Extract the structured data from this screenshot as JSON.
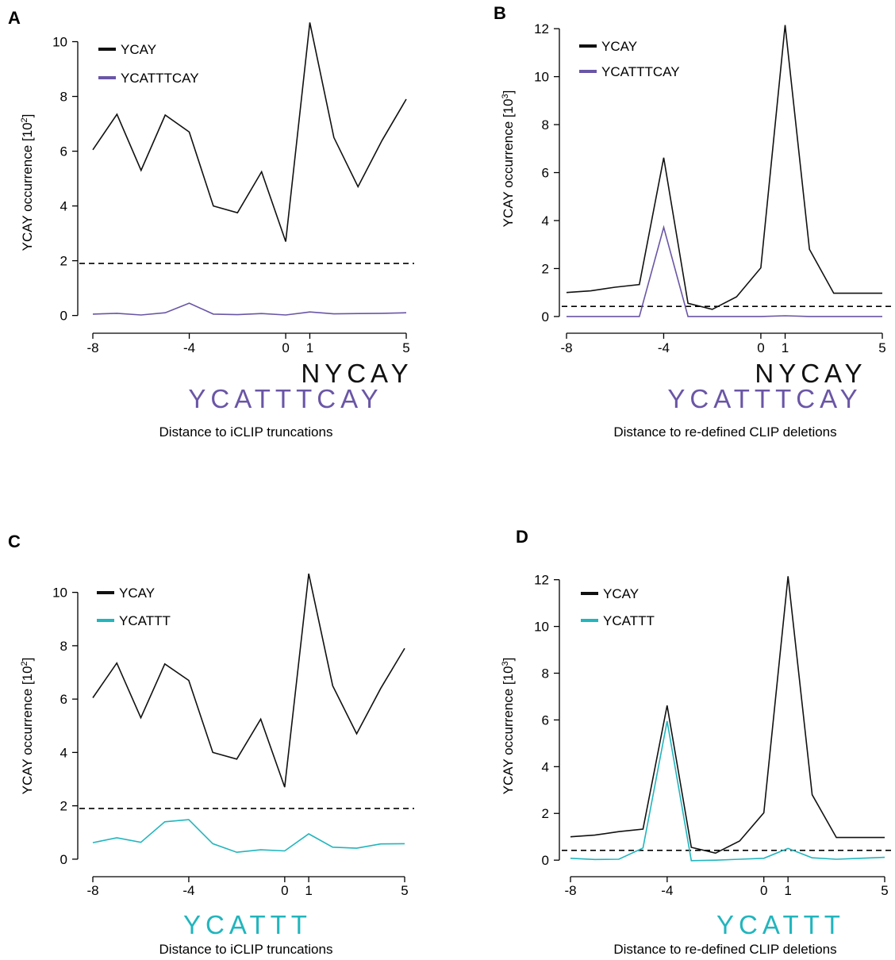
{
  "colors": {
    "ycay": "#111111",
    "purple": "#6a56a6",
    "teal": "#22b5bd"
  },
  "panels": [
    {
      "letter": "A",
      "ylabel_main": "YCAY occurrence [10",
      "ylabel_exp": "2",
      "ylabel_close": "]",
      "xlabel": "Distance to iCLIP truncations",
      "xticks": [
        "-8",
        "-4",
        "0",
        "1",
        "5"
      ],
      "yticks": [
        "0",
        "2",
        "4",
        "6",
        "8",
        "10"
      ],
      "motif_top": "NYCAY",
      "motif_bottom": "YCATTTCAY",
      "legend": [
        "YCAY",
        "YCATTTCAY"
      ]
    },
    {
      "letter": "B",
      "ylabel_main": "YCAY occurrence [10",
      "ylabel_exp": "3",
      "ylabel_close": "]",
      "xlabel": "Distance to re-defined CLIP deletions",
      "xticks": [
        "-8",
        "-4",
        "0",
        "1",
        "5"
      ],
      "yticks": [
        "0",
        "2",
        "4",
        "6",
        "8",
        "10",
        "12"
      ],
      "motif_top": "NYCAY",
      "motif_bottom": "YCATTTCAY",
      "legend": [
        "YCAY",
        "YCATTTCAY"
      ]
    },
    {
      "letter": "C",
      "ylabel_main": "YCAY occurrence [10",
      "ylabel_exp": "2",
      "ylabel_close": "]",
      "xlabel": "Distance to iCLIP truncations",
      "xticks": [
        "-8",
        "-4",
        "0",
        "1",
        "5"
      ],
      "yticks": [
        "0",
        "2",
        "4",
        "6",
        "8",
        "10"
      ],
      "motif_top": "",
      "motif_bottom": "YCATTT",
      "legend": [
        "YCAY",
        "YCATTT"
      ]
    },
    {
      "letter": "D",
      "ylabel_main": "YCAY occurrence [10",
      "ylabel_exp": "3",
      "ylabel_close": "]",
      "xlabel": "Distance to re-defined CLIP deletions",
      "xticks": [
        "-8",
        "-4",
        "0",
        "1",
        "5"
      ],
      "yticks": [
        "0",
        "2",
        "4",
        "6",
        "8",
        "10",
        "12"
      ],
      "motif_top": "",
      "motif_bottom": "YCATTT",
      "legend": [
        "YCAY",
        "YCATTT"
      ]
    }
  ],
  "chart_data": [
    {
      "panel": "A",
      "type": "line",
      "x": [
        -8,
        -7,
        -6,
        -5,
        -4,
        -3,
        -2,
        -1,
        0,
        1,
        2,
        3,
        4,
        5
      ],
      "xlim": [
        -8.5,
        5.5
      ],
      "ylim": [
        -0.3,
        11
      ],
      "threshold": 1.9,
      "series": [
        {
          "name": "YCAY",
          "color": "#111111",
          "values": [
            6.05,
            7.35,
            5.3,
            7.32,
            6.7,
            4.0,
            3.75,
            5.25,
            2.7,
            10.7,
            6.5,
            4.7,
            6.4,
            7.9
          ]
        },
        {
          "name": "YCATTTCAY",
          "color": "#6a56a6",
          "values": [
            0.05,
            0.08,
            0.02,
            0.1,
            0.45,
            0.05,
            0.03,
            0.07,
            0.02,
            0.13,
            0.06,
            0.07,
            0.08,
            0.1
          ]
        }
      ]
    },
    {
      "panel": "B",
      "type": "line",
      "x": [
        -8,
        -7,
        -6,
        -5,
        -4,
        -3,
        -2,
        -1,
        0,
        1,
        2,
        3,
        4,
        5
      ],
      "xlim": [
        -8.5,
        5.5
      ],
      "ylim": [
        -0.3,
        12.6
      ],
      "threshold": 0.42,
      "series": [
        {
          "name": "YCAY",
          "color": "#111111",
          "values": [
            1.0,
            1.07,
            1.22,
            1.33,
            6.62,
            0.55,
            0.3,
            0.82,
            2.03,
            12.15,
            2.8,
            0.97,
            0.97,
            0.97
          ]
        },
        {
          "name": "YCATTTCAY",
          "color": "#6a56a6",
          "values": [
            0.0,
            0.0,
            0.0,
            0.0,
            3.72,
            0.0,
            0.0,
            0.0,
            0.0,
            0.03,
            0.0,
            0.0,
            0.0,
            0.0
          ]
        }
      ]
    },
    {
      "panel": "C",
      "type": "line",
      "x": [
        -8,
        -7,
        -6,
        -5,
        -4,
        -3,
        -2,
        -1,
        0,
        1,
        2,
        3,
        4,
        5
      ],
      "xlim": [
        -8.5,
        5.5
      ],
      "ylim": [
        -0.3,
        11
      ],
      "threshold": 1.9,
      "series": [
        {
          "name": "YCAY",
          "color": "#111111",
          "values": [
            6.05,
            7.35,
            5.3,
            7.32,
            6.7,
            4.0,
            3.75,
            5.25,
            2.7,
            10.7,
            6.5,
            4.7,
            6.4,
            7.9
          ]
        },
        {
          "name": "YCATTT",
          "color": "#22b5bd",
          "values": [
            0.62,
            0.8,
            0.63,
            1.4,
            1.48,
            0.58,
            0.26,
            0.35,
            0.31,
            0.95,
            0.45,
            0.41,
            0.57,
            0.58
          ]
        }
      ]
    },
    {
      "panel": "D",
      "type": "line",
      "x": [
        -8,
        -7,
        -6,
        -5,
        -4,
        -3,
        -2,
        -1,
        0,
        1,
        2,
        3,
        4,
        5
      ],
      "xlim": [
        -8.5,
        5.5
      ],
      "ylim": [
        -0.3,
        12.6
      ],
      "threshold": 0.42,
      "series": [
        {
          "name": "YCAY",
          "color": "#111111",
          "values": [
            1.0,
            1.07,
            1.22,
            1.33,
            6.62,
            0.55,
            0.3,
            0.82,
            2.03,
            12.15,
            2.8,
            0.97,
            0.97,
            0.97
          ]
        },
        {
          "name": "YCATTT",
          "color": "#22b5bd",
          "values": [
            0.08,
            0.03,
            0.04,
            0.52,
            5.95,
            -0.02,
            0.0,
            0.04,
            0.08,
            0.5,
            0.1,
            0.04,
            0.08,
            0.12
          ]
        }
      ]
    }
  ]
}
